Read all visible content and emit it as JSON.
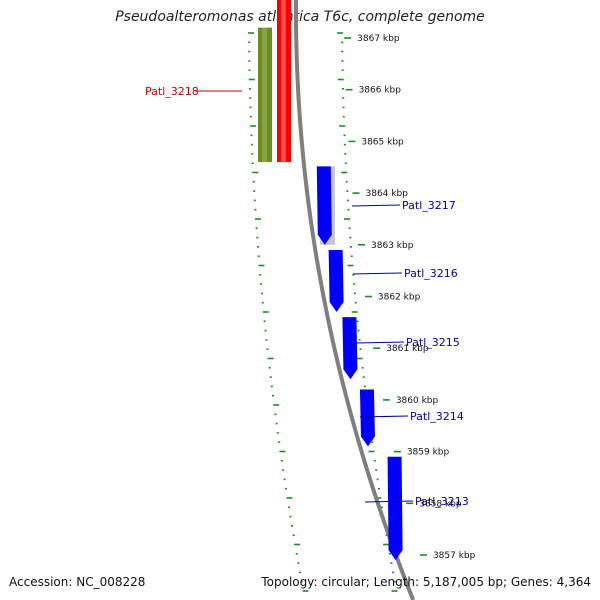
{
  "title": "Pseudoalteromonas atlantica T6c, complete genome",
  "footer": {
    "accession": "Accession: NC_008228",
    "summary": "Topology: circular; Length: 5,187,005 bp; Genes: 4,364"
  },
  "colors": {
    "forward_gene": "#ff0000",
    "reverse_gene": "#0000ff",
    "green_feature": "#6b8e23",
    "gray_feature": "#c8c8c8",
    "backbone": "#7f7f7f",
    "tick": "#228b22",
    "label_red": "#cc0000",
    "label_blue": "#0000aa"
  },
  "kbp_ticks": [
    {
      "label": "3867 kbp",
      "kbp": 3867
    },
    {
      "label": "3866 kbp",
      "kbp": 3866
    },
    {
      "label": "3865 kbp",
      "kbp": 3865
    },
    {
      "label": "3864 kbp",
      "kbp": 3864
    },
    {
      "label": "3863 kbp",
      "kbp": 3863
    },
    {
      "label": "3862 kbp",
      "kbp": 3862
    },
    {
      "label": "3861 kbp",
      "kbp": 3861
    },
    {
      "label": "3860 kbp",
      "kbp": 3860
    },
    {
      "label": "3859 kbp",
      "kbp": 3859
    },
    {
      "label": "3858 kbp",
      "kbp": 3858
    },
    {
      "label": "3857 kbp",
      "kbp": 3857
    }
  ],
  "genes": [
    {
      "name": "Patl_3218",
      "strand": "forward",
      "start_kbp": 3864.6,
      "end_kbp": 3867.5
    },
    {
      "name": "Patl_3217",
      "strand": "reverse",
      "start_kbp": 3863.0,
      "end_kbp": 3864.4
    },
    {
      "name": "Patl_3216",
      "strand": "reverse",
      "start_kbp": 3861.7,
      "end_kbp": 3862.9
    },
    {
      "name": "Patl_3215",
      "strand": "reverse",
      "start_kbp": 3860.4,
      "end_kbp": 3861.6
    },
    {
      "name": "Patl_3214",
      "strand": "reverse",
      "start_kbp": 3859.1,
      "end_kbp": 3860.2
    },
    {
      "name": "Patl_3213",
      "strand": "reverse",
      "start_kbp": 3856.9,
      "end_kbp": 3858.9
    }
  ]
}
